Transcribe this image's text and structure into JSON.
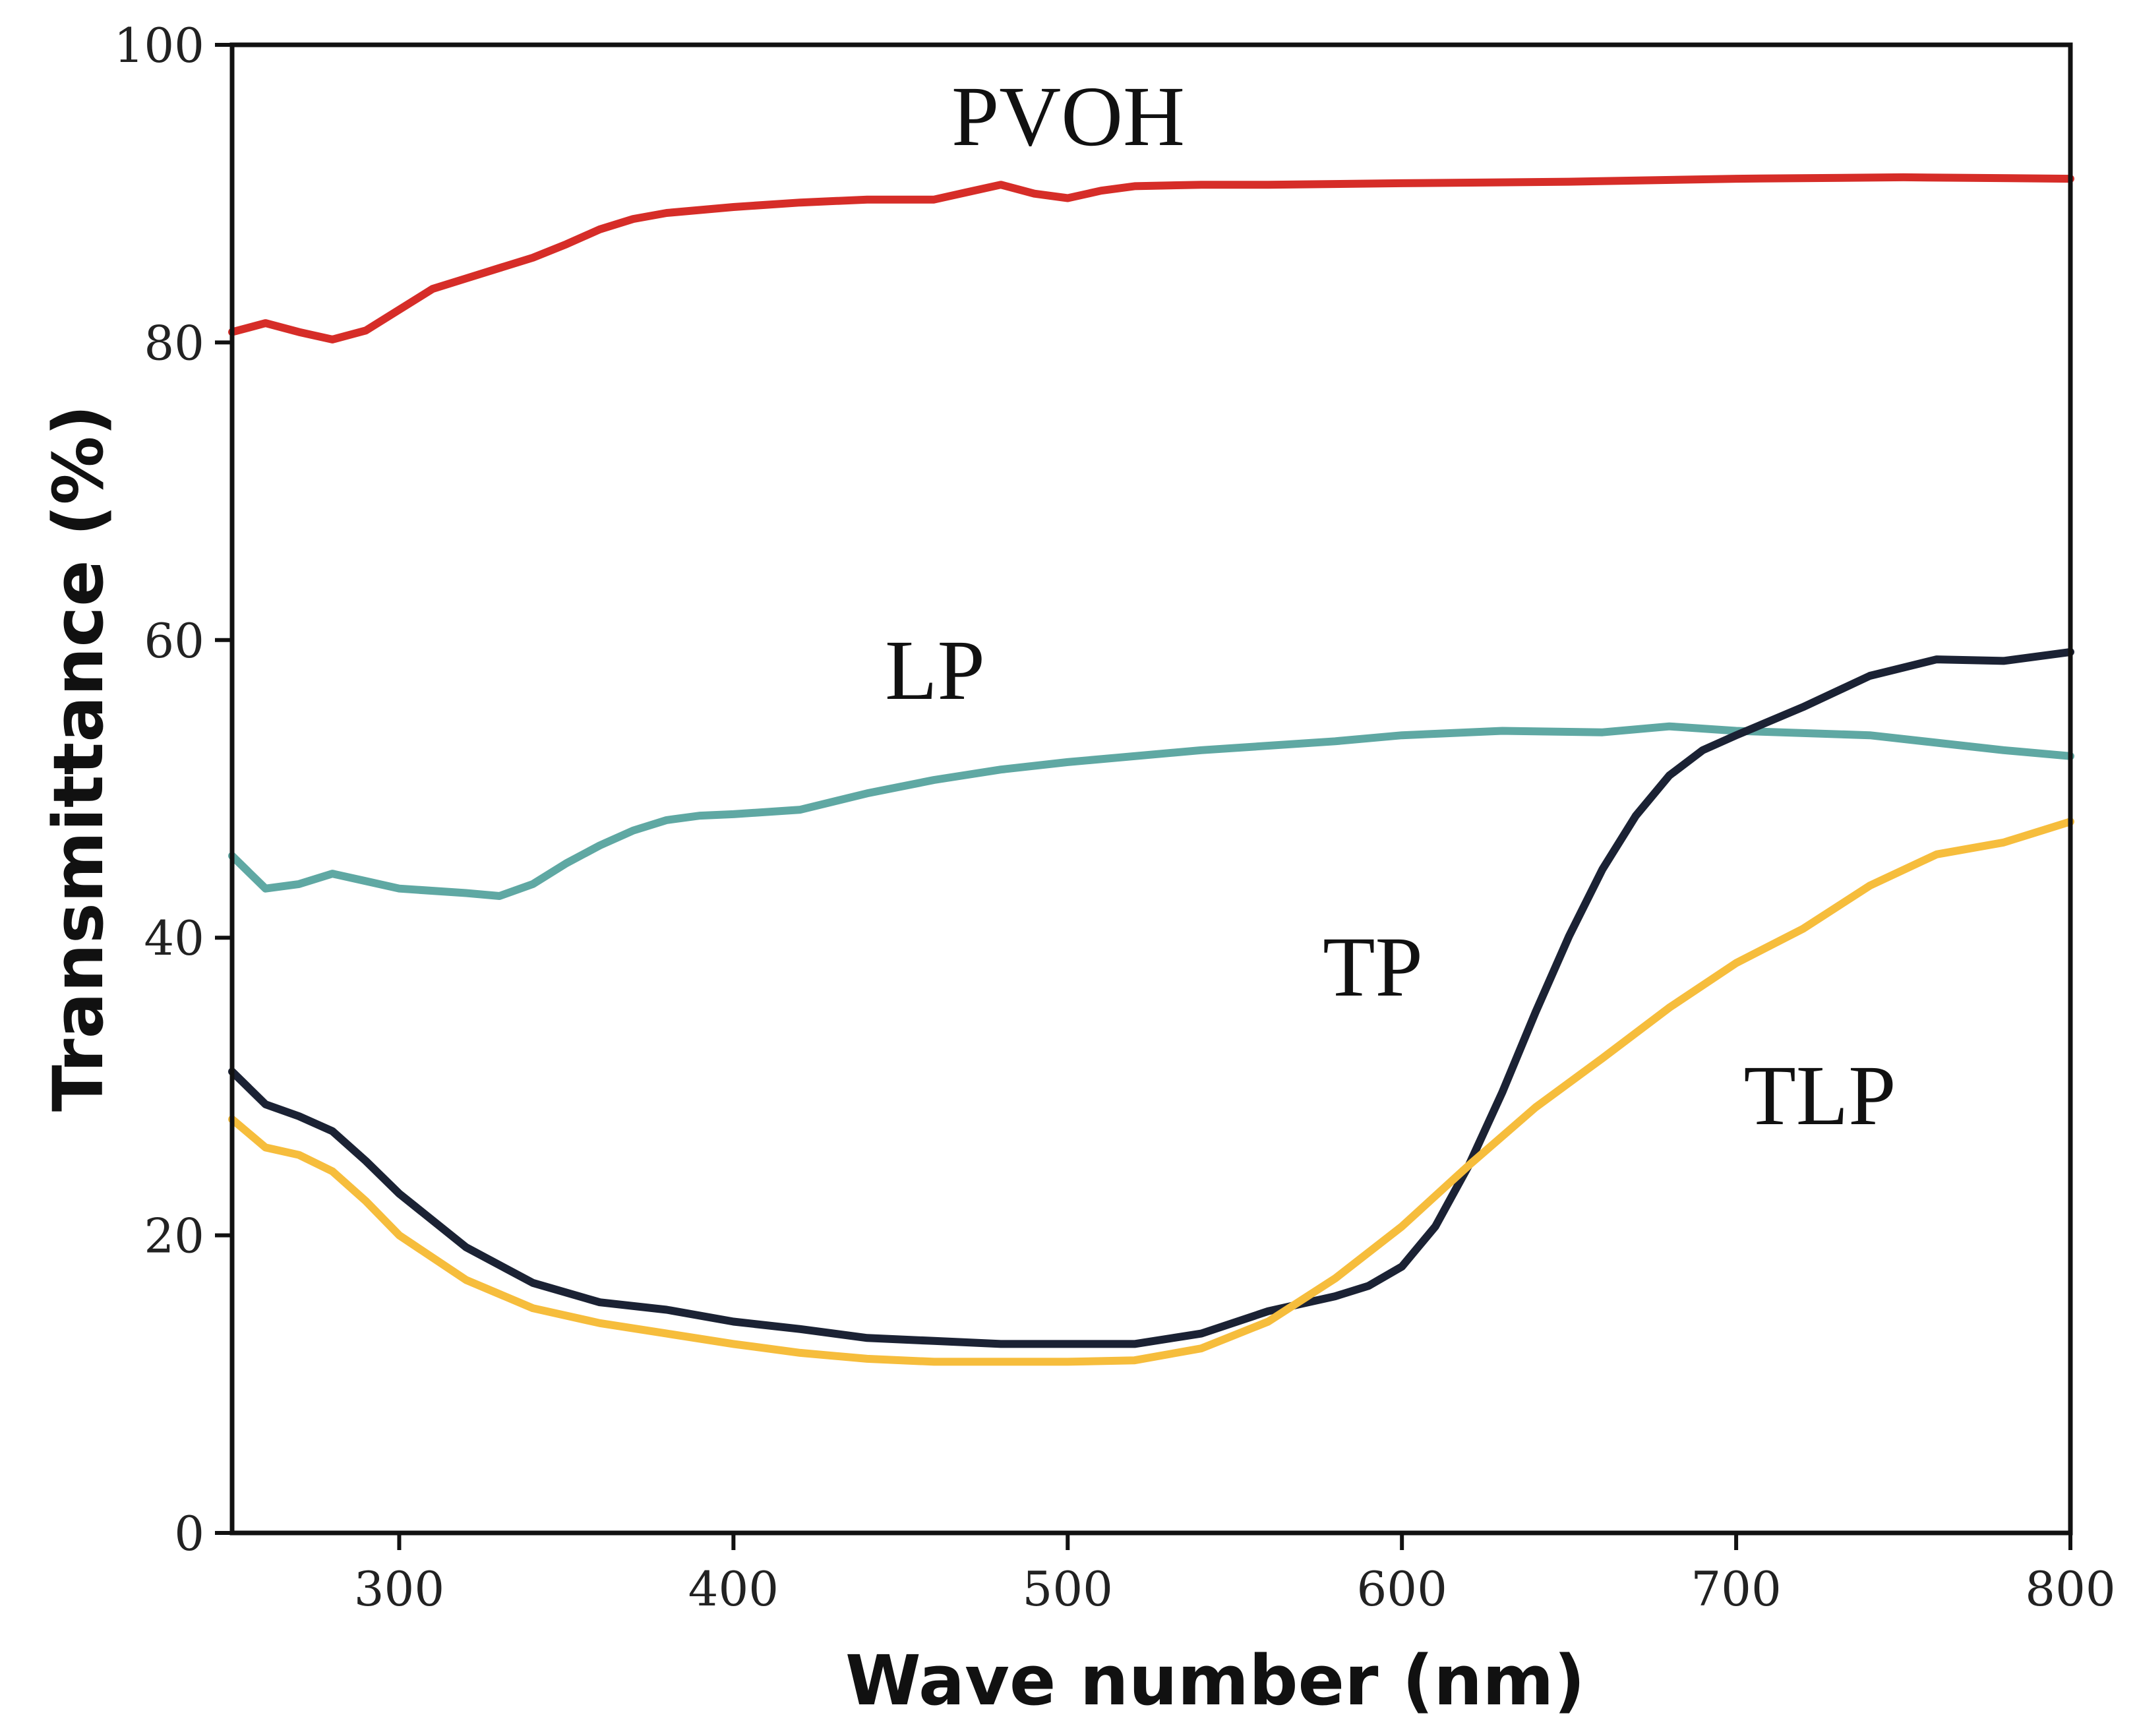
{
  "chart_data": {
    "type": "line",
    "title": "",
    "xlabel": "Wave number (nm)",
    "ylabel": "Transmittance (%)",
    "xlim": [
      250,
      800
    ],
    "ylim": [
      0,
      100
    ],
    "xticks": [
      300,
      400,
      500,
      600,
      700,
      800
    ],
    "yticks": [
      0,
      20,
      40,
      60,
      80,
      100
    ],
    "grid": false,
    "legend": "none (inline series labels)",
    "series": [
      {
        "name": "PVOH",
        "label": "PVOH",
        "color": "#d62d28",
        "x": [
          250,
          260,
          270,
          280,
          290,
          300,
          310,
          320,
          330,
          340,
          350,
          360,
          370,
          380,
          390,
          400,
          420,
          440,
          460,
          470,
          480,
          490,
          500,
          510,
          520,
          540,
          560,
          600,
          650,
          700,
          750,
          800
        ],
        "y": [
          80.7,
          81.3,
          80.7,
          80.2,
          80.8,
          82.2,
          83.6,
          84.3,
          85.0,
          85.7,
          86.6,
          87.6,
          88.3,
          88.7,
          88.9,
          89.1,
          89.4,
          89.6,
          89.6,
          90.1,
          90.6,
          90.0,
          89.7,
          90.2,
          90.5,
          90.6,
          90.6,
          90.7,
          90.8,
          91.0,
          91.1,
          91.0
        ]
      },
      {
        "name": "LP",
        "label": "LP",
        "color": "#5fa8a3",
        "x": [
          250,
          260,
          270,
          280,
          290,
          300,
          320,
          330,
          340,
          350,
          360,
          370,
          380,
          390,
          400,
          420,
          440,
          460,
          480,
          500,
          540,
          580,
          600,
          630,
          660,
          680,
          700,
          740,
          780,
          800
        ],
        "y": [
          45.5,
          43.3,
          43.6,
          44.3,
          43.8,
          43.3,
          43.0,
          42.8,
          43.6,
          45.0,
          46.2,
          47.2,
          47.9,
          48.2,
          48.3,
          48.6,
          49.7,
          50.6,
          51.3,
          51.8,
          52.6,
          53.2,
          53.6,
          53.9,
          53.8,
          54.2,
          53.9,
          53.6,
          52.6,
          52.2
        ]
      },
      {
        "name": "TP",
        "label": "TP",
        "color": "#1b2234",
        "x": [
          250,
          260,
          270,
          280,
          290,
          300,
          320,
          340,
          360,
          380,
          400,
          420,
          440,
          460,
          480,
          500,
          520,
          540,
          560,
          580,
          590,
          600,
          610,
          620,
          630,
          640,
          650,
          660,
          670,
          680,
          690,
          700,
          720,
          740,
          760,
          780,
          800
        ],
        "y": [
          31.0,
          28.8,
          28.0,
          27.0,
          25.0,
          22.8,
          19.2,
          16.8,
          15.5,
          15.0,
          14.2,
          13.7,
          13.1,
          12.9,
          12.7,
          12.7,
          12.7,
          13.4,
          14.9,
          15.9,
          16.6,
          17.9,
          20.6,
          24.7,
          29.6,
          35.0,
          40.1,
          44.6,
          48.2,
          50.9,
          52.6,
          53.6,
          55.5,
          57.6,
          58.7,
          58.6,
          59.2
        ]
      },
      {
        "name": "TLP",
        "label": "TLP",
        "color": "#f6bd3c",
        "x": [
          250,
          260,
          270,
          280,
          290,
          300,
          320,
          340,
          360,
          380,
          400,
          420,
          440,
          460,
          480,
          500,
          520,
          540,
          560,
          580,
          600,
          620,
          640,
          660,
          680,
          700,
          720,
          740,
          760,
          780,
          800
        ],
        "y": [
          27.8,
          25.9,
          25.4,
          24.3,
          22.3,
          20.0,
          17.0,
          15.1,
          14.1,
          13.4,
          12.7,
          12.1,
          11.7,
          11.5,
          11.5,
          11.5,
          11.6,
          12.4,
          14.2,
          17.1,
          20.6,
          24.7,
          28.6,
          31.9,
          35.3,
          38.3,
          40.6,
          43.5,
          45.6,
          46.4,
          47.8
        ]
      }
    ]
  }
}
